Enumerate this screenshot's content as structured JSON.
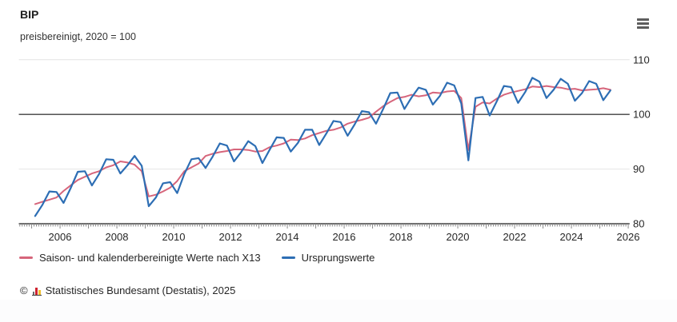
{
  "header": {
    "title": "BIP",
    "subtitle": "preisbereinigt, 2020 = 100"
  },
  "menu": {
    "icon": "hamburger-menu-icon",
    "tooltip": ""
  },
  "colors": {
    "adjusted_line": "#d6657b",
    "original_line": "#2d6eb4",
    "grid": "#e4e4e4",
    "axis": "#3f3f3f",
    "tick": "#8a8a8a",
    "text": "#262626"
  },
  "chart_data": {
    "type": "line",
    "title": "BIP",
    "subtitle": "preisbereinigt, 2020 = 100",
    "x_unit": "quarter",
    "x_start": "2005-Q1",
    "x_end": "2025-Q2",
    "xlim": [
      2004.55,
      2026.05
    ],
    "ylim": [
      80,
      111.5
    ],
    "x_ticks": [
      2006,
      2008,
      2010,
      2012,
      2014,
      2016,
      2018,
      2020,
      2022,
      2024,
      2026
    ],
    "y_ticks": [
      80,
      90,
      100,
      110
    ],
    "y_axis_side": "right",
    "reference_line": 100,
    "grid": "horizontal",
    "legend_position": "bottom",
    "series": [
      {
        "name": "Saison- und kalenderbereinigte Werte nach X13",
        "color": "#d6657b",
        "values": [
          83.6,
          84.0,
          84.4,
          84.8,
          86.0,
          87.0,
          88.0,
          88.6,
          89.2,
          89.6,
          90.3,
          90.7,
          91.4,
          91.2,
          90.8,
          89.6,
          85.0,
          85.3,
          85.9,
          86.6,
          87.8,
          89.6,
          90.3,
          91.0,
          92.4,
          92.8,
          93.1,
          93.3,
          93.6,
          93.6,
          93.5,
          93.2,
          93.3,
          94.0,
          94.3,
          94.7,
          95.4,
          95.3,
          95.6,
          96.2,
          96.6,
          97.0,
          97.2,
          97.6,
          98.3,
          98.7,
          99.0,
          99.4,
          100.5,
          101.5,
          102.3,
          103.0,
          103.2,
          103.6,
          103.3,
          103.5,
          104.0,
          103.9,
          104.2,
          104.3,
          103.0,
          93.5,
          101.4,
          102.2,
          102.0,
          102.9,
          103.6,
          104.0,
          104.3,
          104.6,
          105.1,
          105.0,
          105.2,
          105.0,
          104.9,
          104.6,
          104.7,
          104.4,
          104.5,
          104.6,
          104.8,
          104.5
        ]
      },
      {
        "name": "Ursprungswerte",
        "color": "#2d6eb4",
        "values": [
          81.4,
          83.4,
          85.9,
          85.8,
          83.8,
          86.5,
          89.5,
          89.6,
          87.0,
          89.1,
          91.8,
          91.7,
          89.2,
          90.7,
          92.4,
          90.6,
          83.2,
          84.8,
          87.4,
          87.6,
          85.6,
          89.1,
          91.8,
          92.0,
          90.2,
          92.3,
          94.7,
          94.3,
          91.4,
          93.1,
          95.1,
          94.2,
          91.1,
          93.5,
          95.8,
          95.7,
          93.2,
          94.8,
          97.2,
          97.2,
          94.4,
          96.5,
          98.8,
          98.6,
          96.1,
          98.2,
          100.6,
          100.4,
          98.3,
          101.0,
          103.9,
          104.0,
          101.0,
          103.1,
          104.9,
          104.5,
          101.8,
          103.4,
          105.8,
          105.3,
          102.0,
          91.6,
          103.0,
          103.2,
          99.8,
          102.4,
          105.2,
          105.0,
          102.1,
          104.1,
          106.7,
          106.0,
          103.0,
          104.5,
          106.5,
          105.6,
          102.5,
          103.9,
          106.1,
          105.6,
          102.6,
          104.4
        ]
      }
    ]
  },
  "footer": {
    "copyright": "©",
    "icon": "destatis-logo-icon",
    "source": "Statistisches Bundesamt (Destatis), 2025"
  }
}
